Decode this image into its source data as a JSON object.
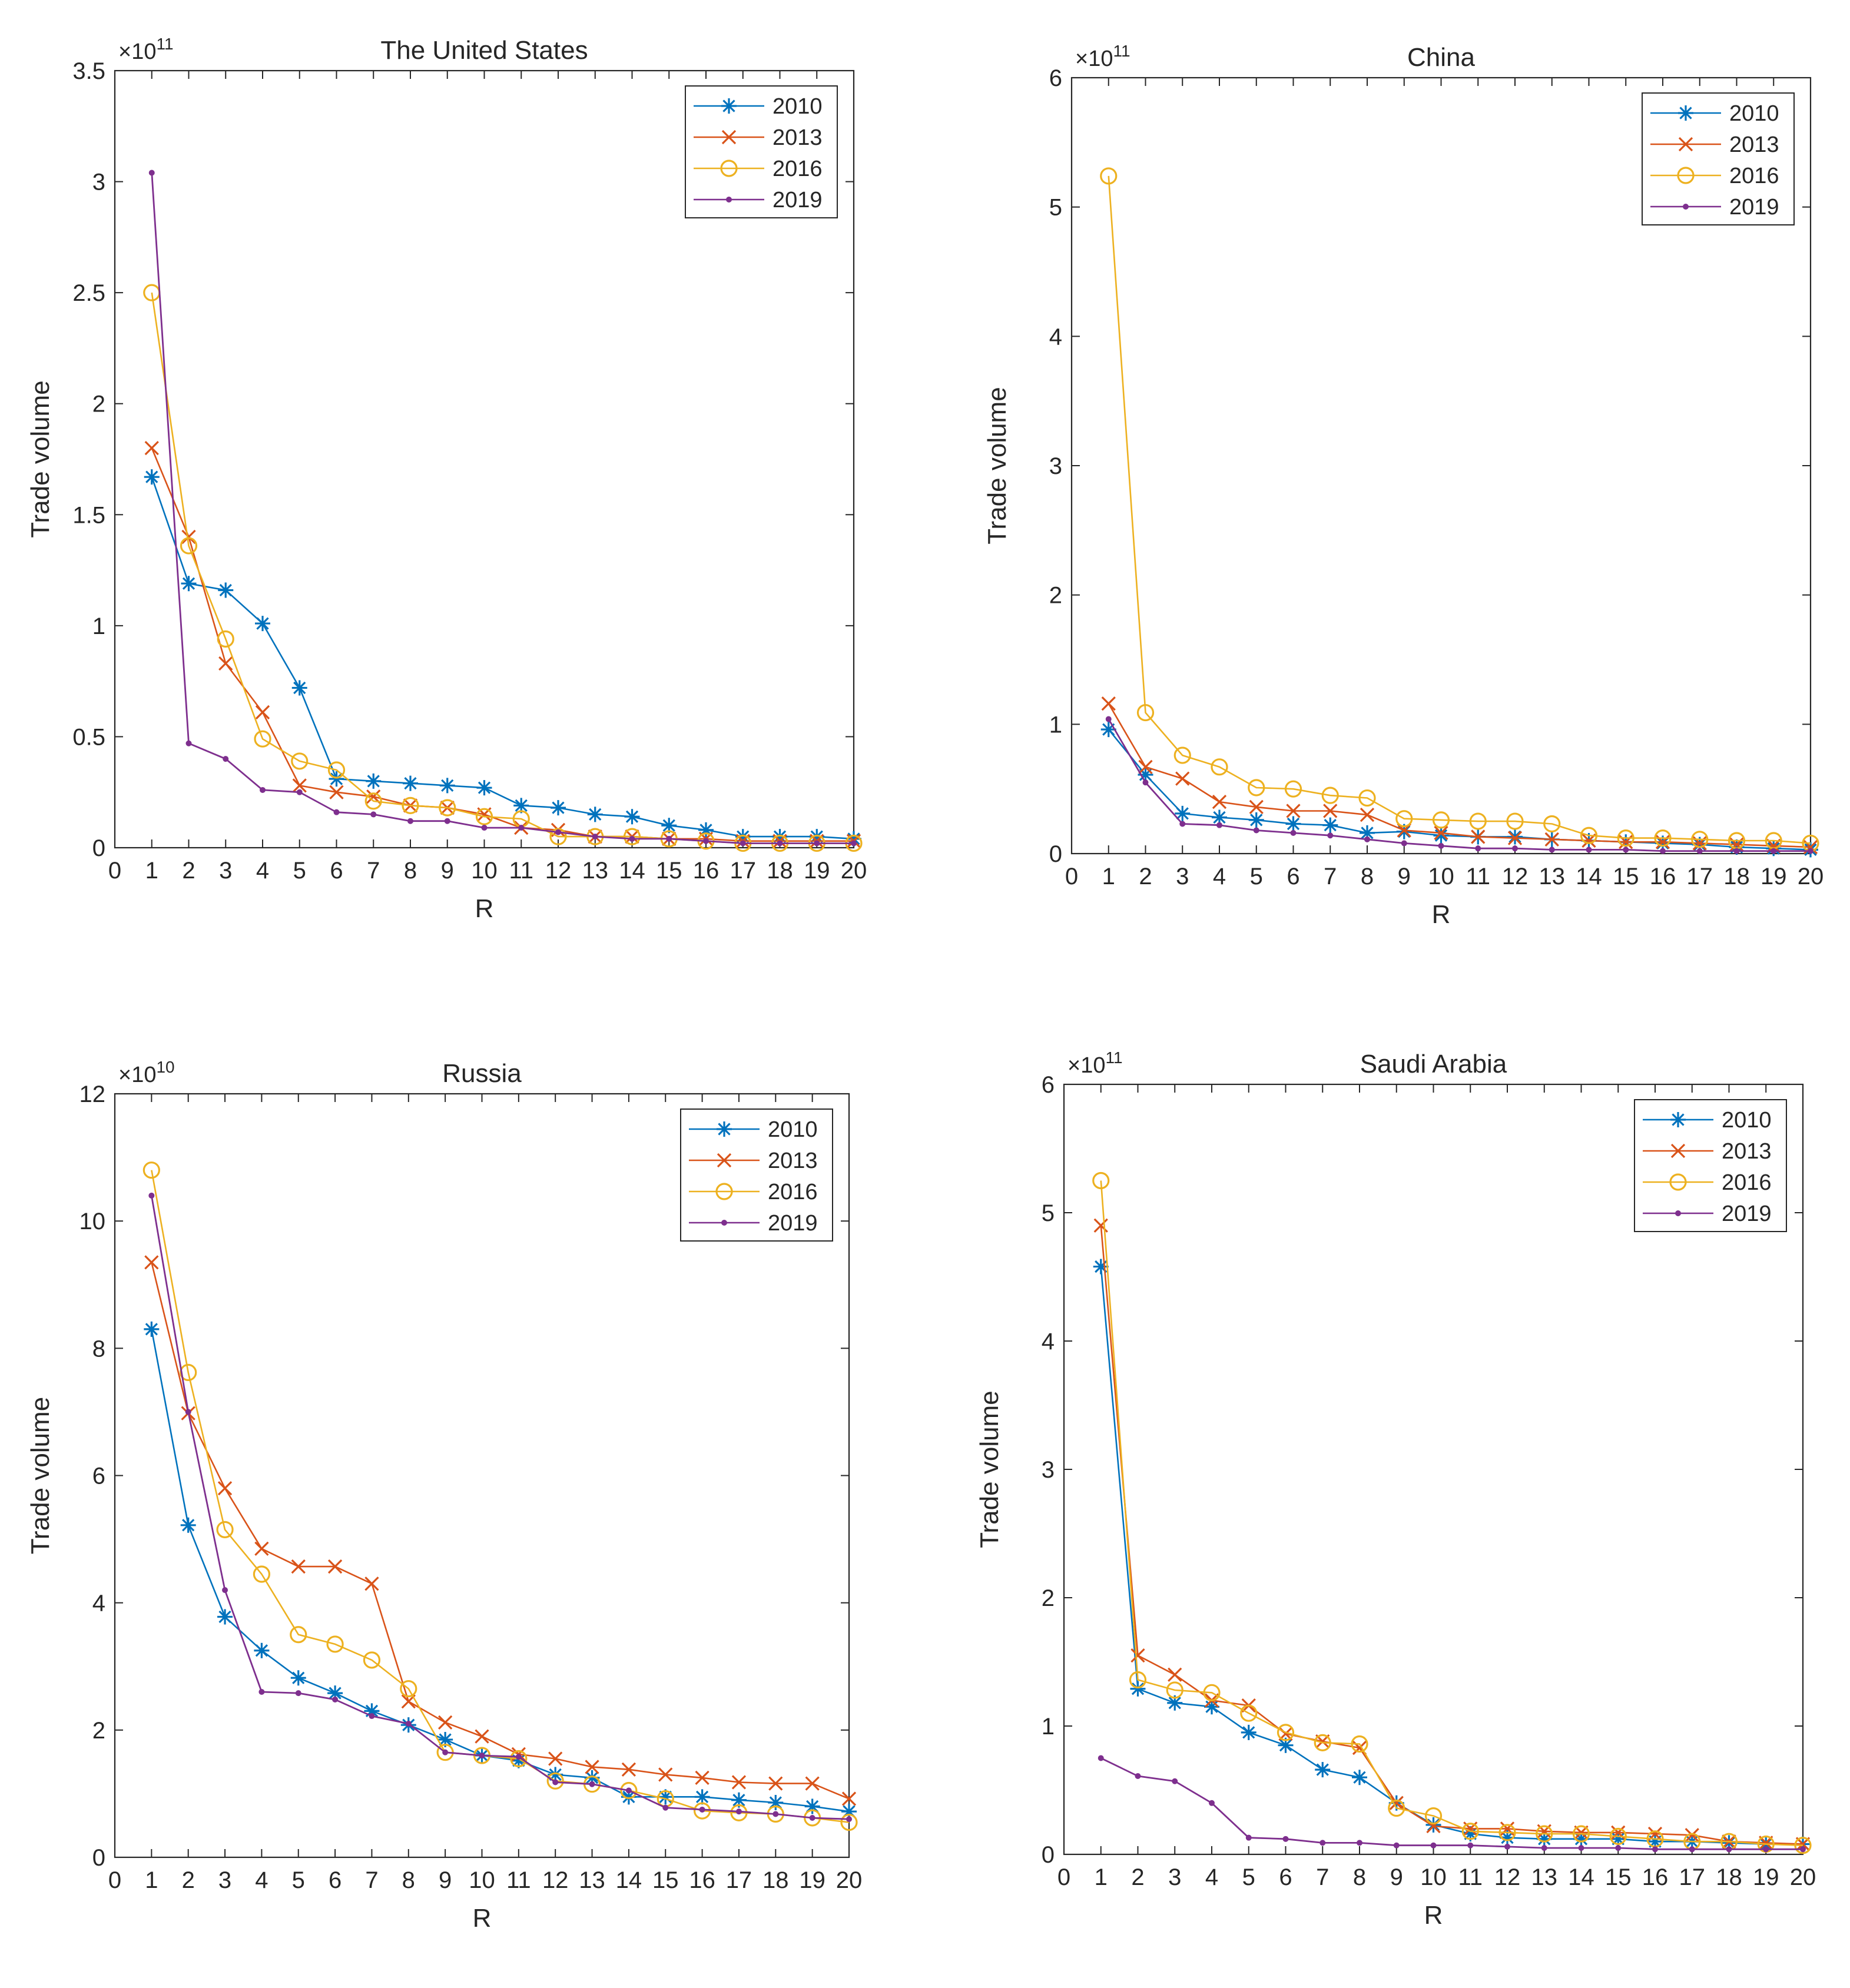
{
  "colors": {
    "2010": "#0072BD",
    "2013": "#D95319",
    "2016": "#EDB120",
    "2019": "#7E2F8E",
    "axis": "#262626",
    "background": "#ffffff"
  },
  "chart_data": [
    {
      "type": "line",
      "title": "The United States",
      "xlabel": "R",
      "ylabel": "Trade volume",
      "xlim": [
        0,
        20
      ],
      "ylim": [
        0,
        3.5
      ],
      "yticks": [
        "0",
        "0.5",
        "1",
        "1.5",
        "2",
        "2.5",
        "3",
        "3.5"
      ],
      "xticks": [
        "0",
        "1",
        "2",
        "3",
        "4",
        "5",
        "6",
        "7",
        "8",
        "9",
        "10",
        "11",
        "12",
        "13",
        "14",
        "15",
        "16",
        "17",
        "18",
        "19",
        "20"
      ],
      "multiplier_base": "×10",
      "multiplier_exp": "11",
      "legend_position": "top-right",
      "x": [
        1,
        2,
        3,
        4,
        5,
        6,
        7,
        8,
        9,
        10,
        11,
        12,
        13,
        14,
        15,
        16,
        17,
        18,
        19,
        20
      ],
      "series": [
        {
          "name": "2010",
          "marker": "asterisk",
          "values": [
            1.67,
            1.19,
            1.16,
            1.01,
            0.72,
            0.31,
            0.3,
            0.29,
            0.28,
            0.27,
            0.19,
            0.18,
            0.15,
            0.14,
            0.1,
            0.08,
            0.05,
            0.05,
            0.05,
            0.04
          ]
        },
        {
          "name": "2013",
          "marker": "x",
          "values": [
            1.8,
            1.4,
            0.83,
            0.61,
            0.28,
            0.25,
            0.23,
            0.19,
            0.18,
            0.15,
            0.09,
            0.08,
            0.05,
            0.05,
            0.04,
            0.04,
            0.03,
            0.03,
            0.03,
            0.03
          ]
        },
        {
          "name": "2016",
          "marker": "circle",
          "values": [
            2.5,
            1.36,
            0.94,
            0.49,
            0.39,
            0.35,
            0.21,
            0.19,
            0.18,
            0.14,
            0.13,
            0.05,
            0.05,
            0.05,
            0.04,
            0.03,
            0.02,
            0.02,
            0.02,
            0.02
          ]
        },
        {
          "name": "2019",
          "marker": "dot",
          "values": [
            3.04,
            0.47,
            0.4,
            0.26,
            0.25,
            0.16,
            0.15,
            0.12,
            0.12,
            0.09,
            0.09,
            0.07,
            0.05,
            0.04,
            0.04,
            0.03,
            0.02,
            0.02,
            0.02,
            0.02
          ]
        }
      ]
    },
    {
      "type": "line",
      "title": "China",
      "xlabel": "R",
      "ylabel": "Trade volume",
      "xlim": [
        0,
        20
      ],
      "ylim": [
        0,
        6
      ],
      "yticks": [
        "0",
        "1",
        "2",
        "3",
        "4",
        "5",
        "6"
      ],
      "xticks": [
        "0",
        "1",
        "2",
        "3",
        "4",
        "5",
        "6",
        "7",
        "8",
        "9",
        "10",
        "11",
        "12",
        "13",
        "14",
        "15",
        "16",
        "17",
        "18",
        "19",
        "20"
      ],
      "multiplier_base": "×10",
      "multiplier_exp": "11",
      "legend_position": "top-right",
      "x": [
        1,
        2,
        3,
        4,
        5,
        6,
        7,
        8,
        9,
        10,
        11,
        12,
        13,
        14,
        15,
        16,
        17,
        18,
        19,
        20
      ],
      "series": [
        {
          "name": "2010",
          "marker": "asterisk",
          "values": [
            0.96,
            0.61,
            0.31,
            0.28,
            0.26,
            0.23,
            0.22,
            0.16,
            0.17,
            0.14,
            0.13,
            0.13,
            0.11,
            0.1,
            0.09,
            0.08,
            0.07,
            0.05,
            0.04,
            0.03
          ]
        },
        {
          "name": "2013",
          "marker": "x",
          "values": [
            1.16,
            0.67,
            0.58,
            0.4,
            0.36,
            0.33,
            0.33,
            0.3,
            0.18,
            0.16,
            0.13,
            0.12,
            0.11,
            0.1,
            0.09,
            0.09,
            0.08,
            0.07,
            0.06,
            0.05
          ]
        },
        {
          "name": "2016",
          "marker": "circle",
          "values": [
            5.24,
            1.09,
            0.76,
            0.67,
            0.51,
            0.5,
            0.45,
            0.43,
            0.27,
            0.26,
            0.25,
            0.25,
            0.23,
            0.14,
            0.12,
            0.12,
            0.11,
            0.1,
            0.1,
            0.08
          ]
        },
        {
          "name": "2019",
          "marker": "dot",
          "values": [
            1.04,
            0.55,
            0.23,
            0.22,
            0.18,
            0.16,
            0.14,
            0.11,
            0.08,
            0.06,
            0.04,
            0.04,
            0.03,
            0.03,
            0.03,
            0.02,
            0.02,
            0.02,
            0.02,
            0.02
          ]
        }
      ]
    },
    {
      "type": "line",
      "title": "Russia",
      "xlabel": "R",
      "ylabel": "Trade volume",
      "xlim": [
        0,
        20
      ],
      "ylim": [
        0,
        12
      ],
      "yticks": [
        "0",
        "2",
        "4",
        "6",
        "8",
        "10",
        "12"
      ],
      "xticks": [
        "0",
        "1",
        "2",
        "3",
        "4",
        "5",
        "6",
        "7",
        "8",
        "9",
        "10",
        "11",
        "12",
        "13",
        "14",
        "15",
        "16",
        "17",
        "18",
        "19",
        "20"
      ],
      "multiplier_base": "×10",
      "multiplier_exp": "10",
      "legend_position": "top-right",
      "x": [
        1,
        2,
        3,
        4,
        5,
        6,
        7,
        8,
        9,
        10,
        11,
        12,
        13,
        14,
        15,
        16,
        17,
        18,
        19,
        20
      ],
      "series": [
        {
          "name": "2010",
          "marker": "asterisk",
          "values": [
            8.3,
            5.22,
            3.78,
            3.25,
            2.82,
            2.58,
            2.3,
            2.08,
            1.85,
            1.6,
            1.52,
            1.3,
            1.25,
            0.95,
            0.95,
            0.95,
            0.9,
            0.86,
            0.8,
            0.72
          ]
        },
        {
          "name": "2013",
          "marker": "x",
          "values": [
            9.35,
            6.98,
            5.8,
            4.85,
            4.57,
            4.57,
            4.3,
            2.45,
            2.12,
            1.9,
            1.62,
            1.55,
            1.42,
            1.38,
            1.3,
            1.25,
            1.18,
            1.16,
            1.16,
            0.92
          ]
        },
        {
          "name": "2016",
          "marker": "circle",
          "values": [
            10.8,
            7.62,
            5.15,
            4.45,
            3.5,
            3.35,
            3.1,
            2.65,
            1.65,
            1.6,
            1.55,
            1.2,
            1.15,
            1.05,
            0.92,
            0.73,
            0.7,
            0.68,
            0.62,
            0.55
          ]
        },
        {
          "name": "2019",
          "marker": "dot",
          "values": [
            10.4,
            7.0,
            4.2,
            2.6,
            2.58,
            2.48,
            2.22,
            2.1,
            1.65,
            1.6,
            1.58,
            1.18,
            1.15,
            1.05,
            0.78,
            0.75,
            0.72,
            0.68,
            0.62,
            0.6
          ]
        }
      ]
    },
    {
      "type": "line",
      "title": "Saudi Arabia",
      "xlabel": "R",
      "ylabel": "Trade volume",
      "xlim": [
        0,
        20
      ],
      "ylim": [
        0,
        6
      ],
      "yticks": [
        "0",
        "1",
        "2",
        "3",
        "4",
        "5",
        "6"
      ],
      "xticks": [
        "0",
        "1",
        "2",
        "3",
        "4",
        "5",
        "6",
        "7",
        "8",
        "9",
        "10",
        "11",
        "12",
        "13",
        "14",
        "15",
        "16",
        "17",
        "18",
        "19",
        "20"
      ],
      "multiplier_base": "×10",
      "multiplier_exp": "11",
      "legend_position": "top-right",
      "x": [
        1,
        2,
        3,
        4,
        5,
        6,
        7,
        8,
        9,
        10,
        11,
        12,
        13,
        14,
        15,
        16,
        17,
        18,
        19,
        20
      ],
      "series": [
        {
          "name": "2010",
          "marker": "asterisk",
          "values": [
            4.58,
            1.29,
            1.18,
            1.15,
            0.95,
            0.85,
            0.66,
            0.6,
            0.4,
            0.23,
            0.16,
            0.13,
            0.12,
            0.12,
            0.12,
            0.1,
            0.1,
            0.09,
            0.08,
            0.08
          ]
        },
        {
          "name": "2013",
          "marker": "x",
          "values": [
            4.9,
            1.55,
            1.4,
            1.2,
            1.16,
            0.94,
            0.88,
            0.83,
            0.4,
            0.22,
            0.2,
            0.2,
            0.18,
            0.17,
            0.17,
            0.16,
            0.15,
            0.1,
            0.09,
            0.08
          ]
        },
        {
          "name": "2016",
          "marker": "circle",
          "values": [
            5.25,
            1.36,
            1.28,
            1.26,
            1.1,
            0.95,
            0.87,
            0.86,
            0.36,
            0.3,
            0.18,
            0.17,
            0.16,
            0.16,
            0.14,
            0.12,
            0.1,
            0.1,
            0.08,
            0.07
          ]
        },
        {
          "name": "2019",
          "marker": "dot",
          "values": [
            0.75,
            0.61,
            0.57,
            0.4,
            0.13,
            0.12,
            0.09,
            0.09,
            0.07,
            0.07,
            0.07,
            0.06,
            0.05,
            0.05,
            0.05,
            0.04,
            0.04,
            0.04,
            0.04,
            0.04
          ]
        }
      ]
    }
  ]
}
